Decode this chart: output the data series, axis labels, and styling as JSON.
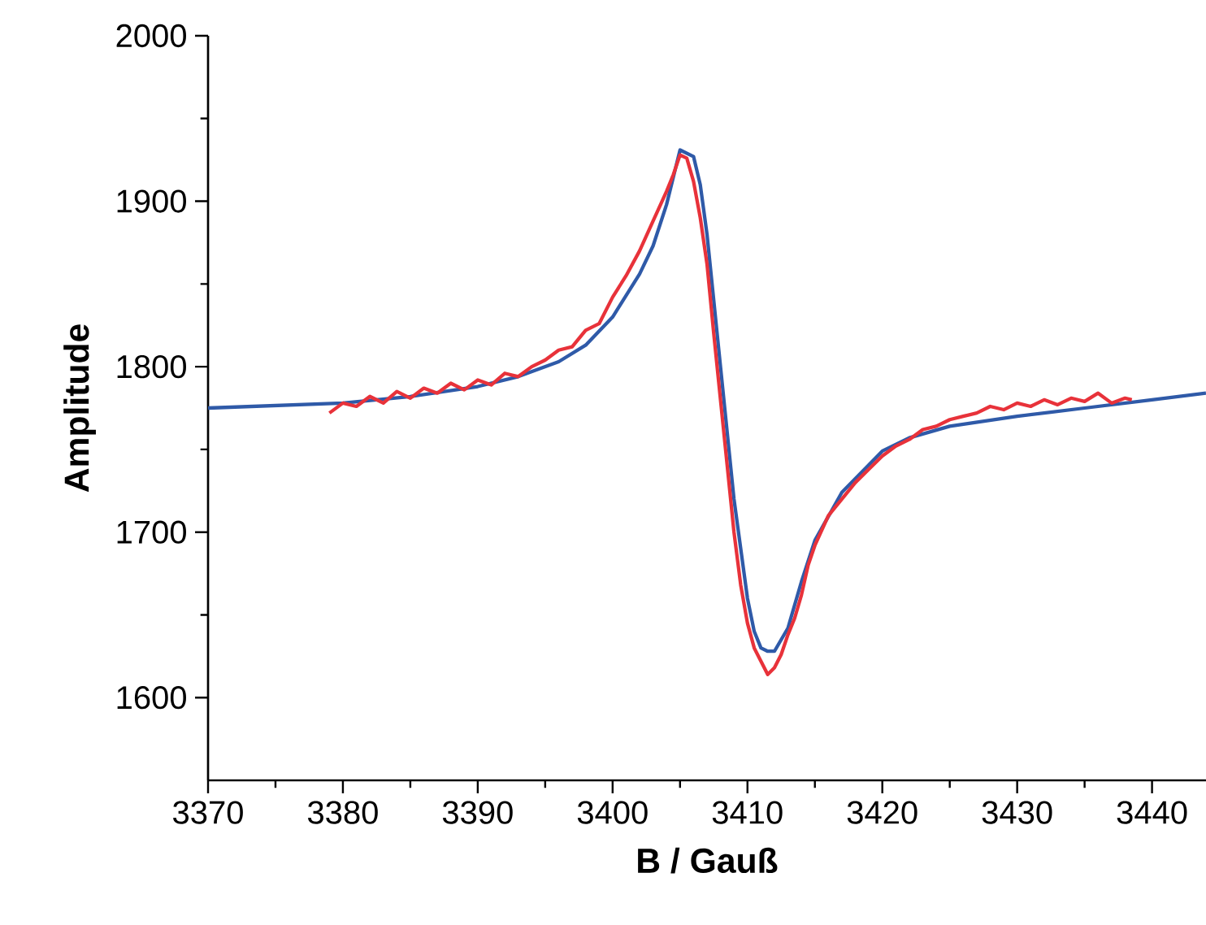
{
  "chart_data": {
    "type": "line",
    "xlabel": "B / Gauß",
    "ylabel": "Amplitude",
    "xlim": [
      3370,
      3444
    ],
    "ylim": [
      1550,
      2000
    ],
    "xticks": [
      3370,
      3380,
      3390,
      3400,
      3410,
      3420,
      3430,
      3440
    ],
    "yticks": [
      1600,
      1700,
      1800,
      1900,
      2000
    ],
    "grid": false,
    "marker": "none",
    "line_style": "solid",
    "series": [
      {
        "color": "#2f5aa8",
        "x": [
          3370,
          3380,
          3385,
          3390,
          3393,
          3396,
          3398,
          3400,
          3402,
          3403,
          3404,
          3405,
          3406,
          3406.5,
          3407,
          3408,
          3409,
          3410,
          3410.5,
          3411,
          3411.5,
          3412,
          3413,
          3414,
          3415,
          3417,
          3420,
          3422,
          3425,
          3430,
          3435,
          3440,
          3444
        ],
        "values": [
          1775,
          1778,
          1782,
          1788,
          1794,
          1803,
          1813,
          1830,
          1856,
          1873,
          1898,
          1931,
          1927,
          1910,
          1880,
          1800,
          1720,
          1660,
          1640,
          1630,
          1628,
          1628,
          1642,
          1670,
          1695,
          1724,
          1749,
          1757,
          1764,
          1770,
          1775,
          1780,
          1784
        ]
      },
      {
        "color": "#e8323a",
        "x": [
          3379,
          3380,
          3381,
          3382,
          3383,
          3384,
          3385,
          3386,
          3387,
          3388,
          3389,
          3390,
          3391,
          3392,
          3393,
          3394,
          3395,
          3396,
          3397,
          3398,
          3399,
          3400,
          3401,
          3402,
          3403,
          3404,
          3404.5,
          3405,
          3405.5,
          3406,
          3406.5,
          3407,
          3407.5,
          3408,
          3408.5,
          3409,
          3409.5,
          3410,
          3410.5,
          3411,
          3411.5,
          3412,
          3412.5,
          3413,
          3413.5,
          3414,
          3414.5,
          3415,
          3416,
          3417,
          3418,
          3419,
          3420,
          3421,
          3422,
          3423,
          3424,
          3425,
          3426,
          3427,
          3428,
          3429,
          3430,
          3431,
          3432,
          3433,
          3434,
          3435,
          3436,
          3437,
          3438,
          3438.5
        ],
        "values": [
          1772,
          1778,
          1776,
          1782,
          1778,
          1785,
          1781,
          1787,
          1784,
          1790,
          1786,
          1792,
          1789,
          1796,
          1794,
          1800,
          1804,
          1810,
          1812,
          1822,
          1826,
          1842,
          1855,
          1870,
          1888,
          1906,
          1916,
          1928,
          1926,
          1912,
          1890,
          1862,
          1820,
          1780,
          1740,
          1700,
          1668,
          1645,
          1630,
          1622,
          1614,
          1618,
          1626,
          1638,
          1648,
          1662,
          1680,
          1692,
          1710,
          1720,
          1730,
          1738,
          1746,
          1752,
          1756,
          1762,
          1764,
          1768,
          1770,
          1772,
          1776,
          1774,
          1778,
          1776,
          1780,
          1777,
          1781,
          1779,
          1784,
          1778,
          1781,
          1780
        ]
      }
    ]
  }
}
